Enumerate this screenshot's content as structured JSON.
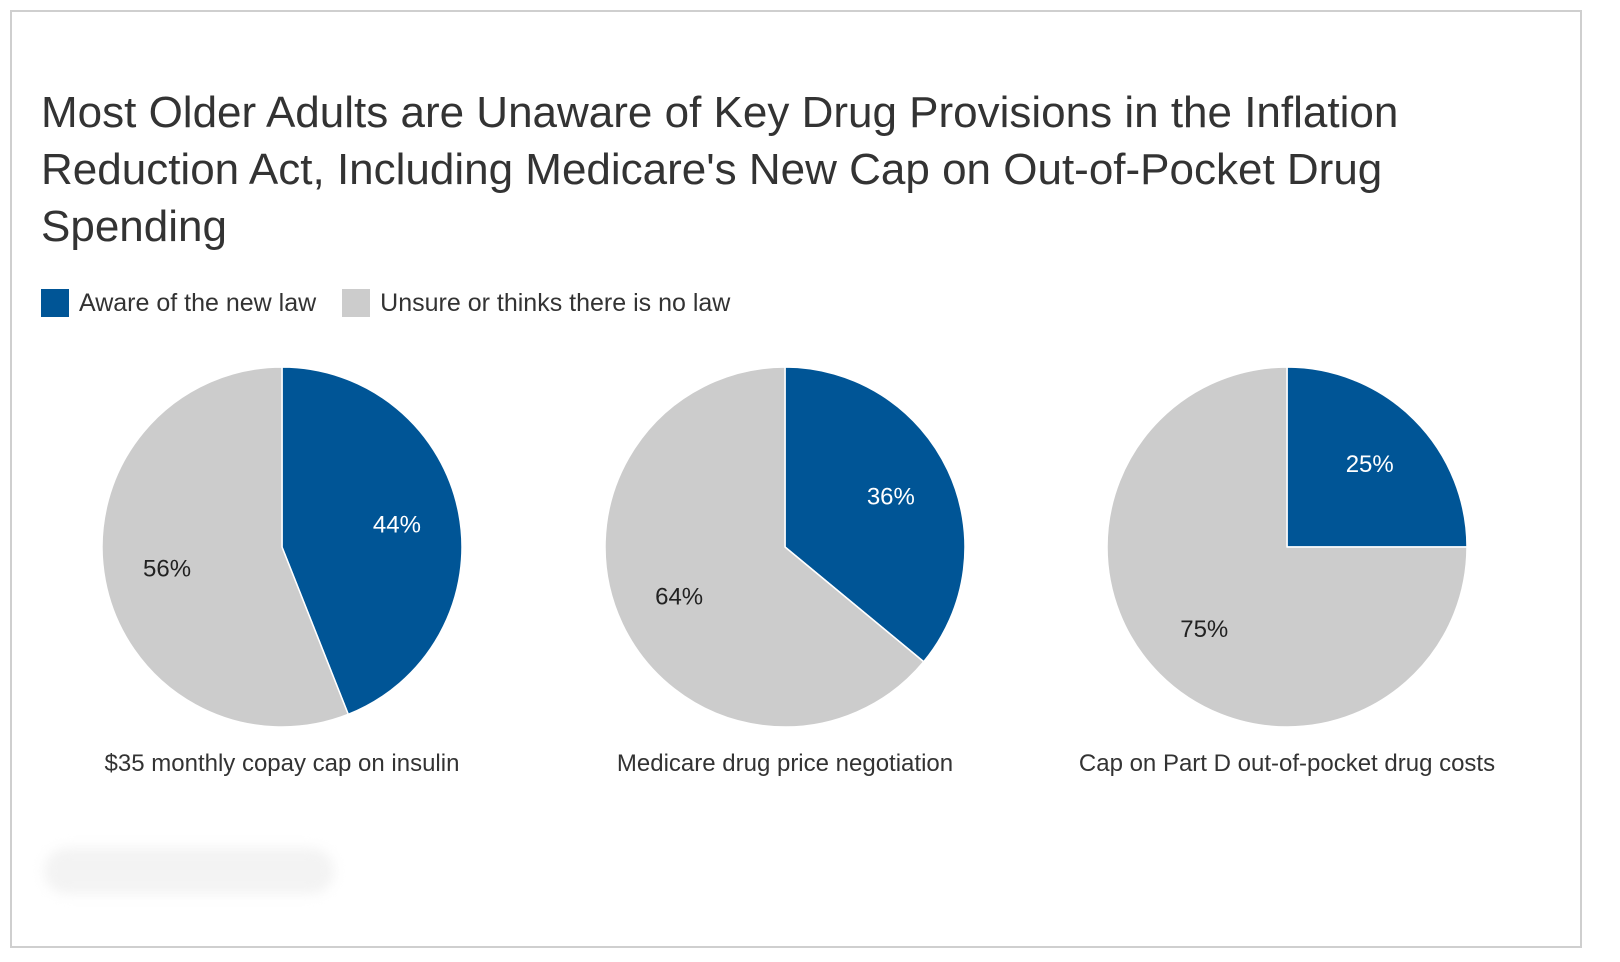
{
  "title": "Most Older Adults are Unaware of Key Drug Provisions in the Inflation Reduction Act, Including Medicare's New Cap on Out-of-Pocket Drug Spending",
  "legend": [
    {
      "label": "Aware of the new law",
      "color": "#005596"
    },
    {
      "label": "Unsure or thinks there is no law",
      "color": "#cccccc"
    }
  ],
  "chart_data": [
    {
      "type": "pie",
      "caption": "$35 monthly copay cap on insulin",
      "slices": [
        {
          "series": "Aware of the new law",
          "value": 44,
          "label": "44%",
          "color": "#005596"
        },
        {
          "series": "Unsure or thinks there is no law",
          "value": 56,
          "label": "56%",
          "color": "#cccccc"
        }
      ]
    },
    {
      "type": "pie",
      "caption": "Medicare drug price negotiation",
      "slices": [
        {
          "series": "Aware of the new law",
          "value": 36,
          "label": "36%",
          "color": "#005596"
        },
        {
          "series": "Unsure or thinks there is no law",
          "value": 64,
          "label": "64%",
          "color": "#cccccc"
        }
      ]
    },
    {
      "type": "pie",
      "caption": "Cap on Part D out-of-pocket drug costs",
      "slices": [
        {
          "series": "Aware of the new law",
          "value": 25,
          "label": "25%",
          "color": "#005596"
        },
        {
          "series": "Unsure or thinks there is no law",
          "value": 75,
          "label": "75%",
          "color": "#cccccc"
        }
      ]
    }
  ]
}
